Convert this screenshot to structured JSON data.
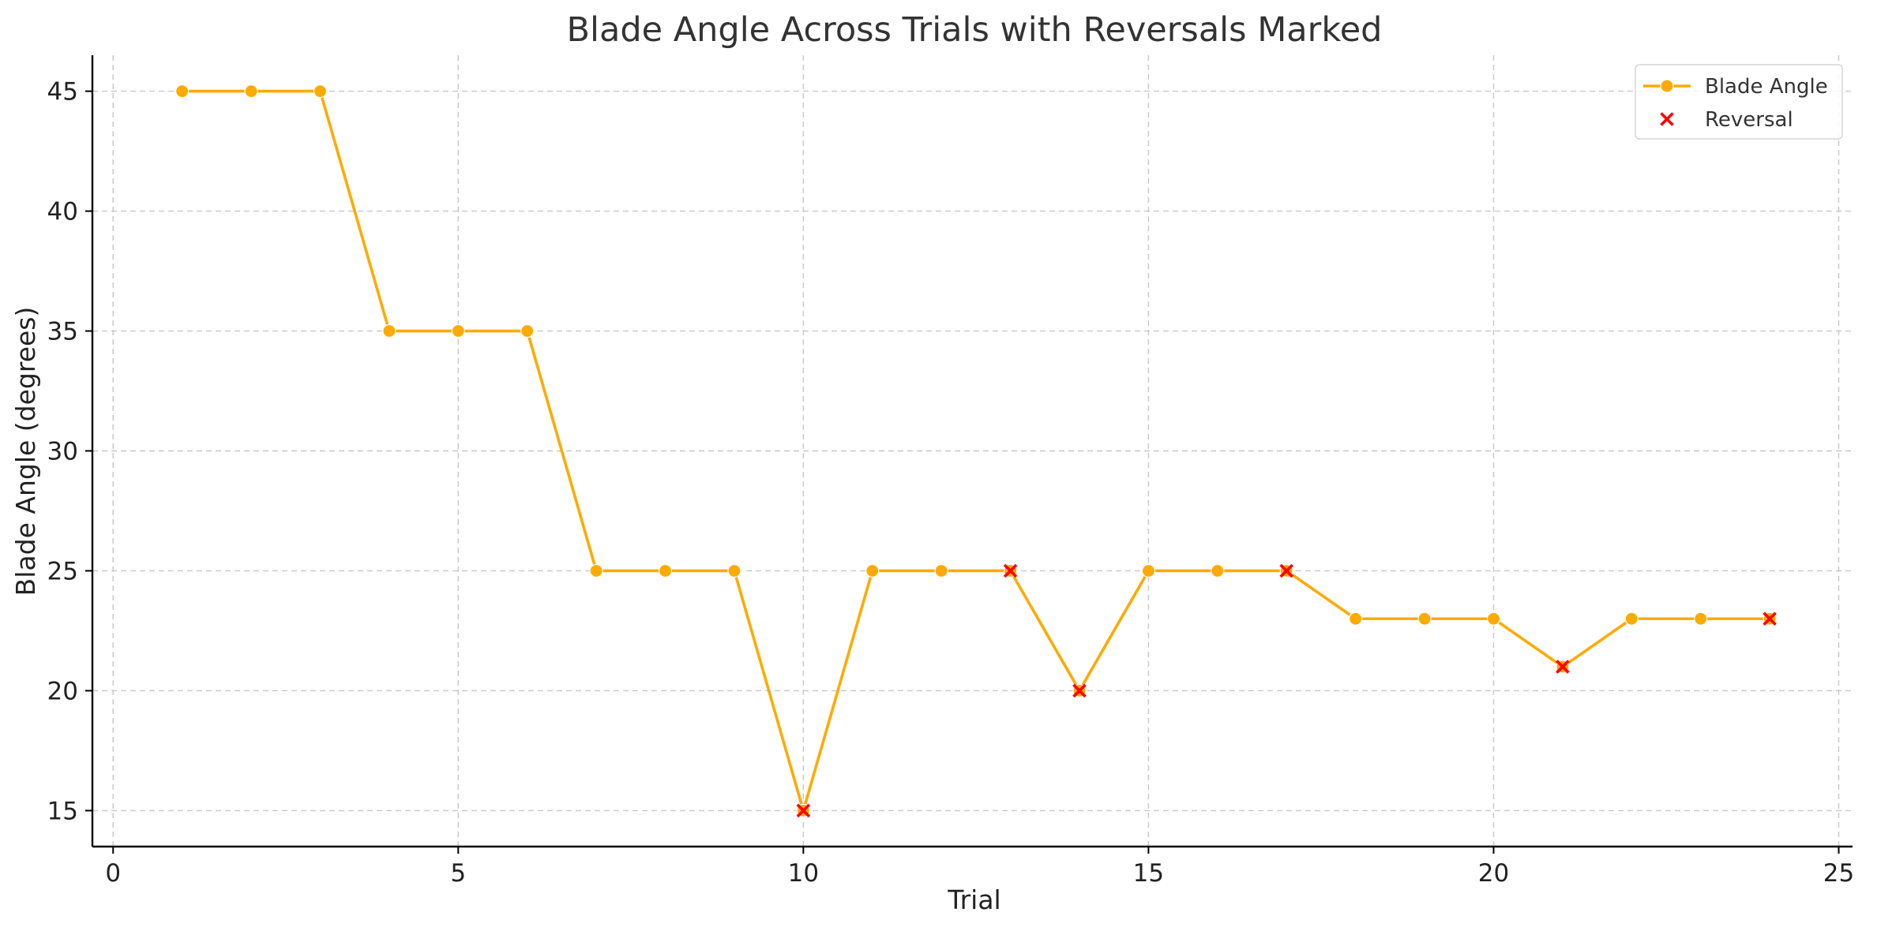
{
  "chart_data": {
    "type": "line",
    "title": "Blade Angle Across Trials with Reversals Marked",
    "xlabel": "Trial",
    "ylabel": "Blade Angle (degrees)",
    "xlim": [
      -0.3,
      25.2
    ],
    "ylim": [
      13.5,
      46.5
    ],
    "xticks": [
      0,
      5,
      10,
      15,
      20,
      25
    ],
    "yticks": [
      15,
      20,
      25,
      30,
      35,
      40,
      45
    ],
    "grid": true,
    "legend_position": "top-right",
    "series": [
      {
        "name": "Blade Angle",
        "color": "#FFAA00",
        "marker": "circle",
        "x": [
          1,
          2,
          3,
          4,
          5,
          6,
          7,
          8,
          9,
          10,
          11,
          12,
          13,
          14,
          15,
          16,
          17,
          18,
          19,
          20,
          21,
          22,
          23,
          24
        ],
        "y": [
          45,
          45,
          45,
          35,
          35,
          35,
          25,
          25,
          25,
          15,
          25,
          25,
          25,
          20,
          25,
          25,
          25,
          23,
          23,
          23,
          21,
          23,
          23,
          23
        ]
      },
      {
        "name": "Reversal",
        "color": "#FF0000",
        "marker": "x",
        "x": [
          10,
          13,
          14,
          17,
          21,
          24
        ],
        "y": [
          15,
          25,
          20,
          25,
          21,
          23
        ]
      }
    ]
  }
}
